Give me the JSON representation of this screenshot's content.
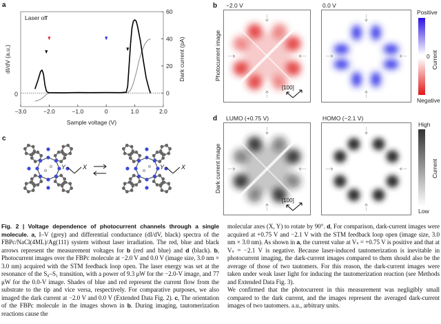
{
  "panel_a": {
    "label": "a",
    "annotation": "Laser off",
    "left_axis_label": "dI/dV (a.u.)",
    "left_tick": "0",
    "right_axis_label": "Dark current (pA)",
    "colors": {
      "didv": "#000000",
      "iv": "#888888",
      "red_arrow": "#e0202a",
      "blue_arrow": "#2020e0",
      "black_arrow": "#000000"
    }
  },
  "chart_data": {
    "type": "line",
    "xlabel": "Sample voltage (V)",
    "ylabel_left": "dI/dV (a.u.)",
    "ylabel_right": "Dark current (pA)",
    "xlim": [
      -3.0,
      2.0
    ],
    "ylim_right": [
      -10,
      60
    ],
    "x_ticks": [
      "-3.0",
      "-2.0",
      "-1.0",
      "0",
      "1.0",
      "2.0"
    ],
    "y_right_ticks": [
      "0",
      "20",
      "40",
      "60"
    ],
    "series": [
      {
        "name": "dI/dV",
        "color": "#000000",
        "x": [
          -2.5,
          -2.4,
          -2.3,
          -2.25,
          -2.2,
          -2.15,
          -2.1,
          -2.05,
          -2.0,
          -1.5,
          -1.0,
          -0.5,
          0.0,
          0.5,
          0.7,
          0.75,
          0.8,
          0.85,
          0.9,
          0.95,
          1.0,
          1.05,
          1.1,
          1.2,
          1.3,
          1.4,
          1.5,
          1.55
        ],
        "y": [
          3,
          9,
          16,
          17,
          14,
          6,
          1.5,
          0.5,
          0.3,
          0.2,
          0.4,
          0.3,
          0.4,
          0.3,
          0.6,
          5,
          20,
          36,
          48,
          53,
          54,
          53,
          49,
          38,
          24,
          11,
          3,
          0
        ]
      },
      {
        "name": "I-V",
        "color": "#888888",
        "x": [
          -2.5,
          -2.4,
          -2.3,
          -2.2,
          -2.1,
          -2.0,
          -1.0,
          0.0,
          0.6,
          0.75,
          0.85,
          0.95,
          1.05,
          1.15,
          1.25,
          1.35,
          1.45,
          1.55
        ],
        "y": [
          -6,
          -5.5,
          -4.5,
          -3,
          -1,
          0,
          0,
          0,
          0,
          0.3,
          2,
          7,
          15,
          24,
          31,
          36,
          39,
          40
        ]
      }
    ],
    "markers": [
      {
        "x": -2.1,
        "color": "black"
      },
      {
        "x": -2.0,
        "color": "red"
      },
      {
        "x": 0.0,
        "color": "blue"
      },
      {
        "x": 0.75,
        "color": "black"
      }
    ]
  },
  "panel_b": {
    "label": "b",
    "row_label": "Photocurrent image",
    "images": [
      {
        "title": "−2.0 V",
        "color": "#e02a2a"
      },
      {
        "title": "0.0 V",
        "color": "#2a2ae6"
      }
    ],
    "direction": "[100]",
    "colorbar": {
      "top": "Positive",
      "mid": "0",
      "bottom": "Negative",
      "label": "Current",
      "top_color": "#2a10e0",
      "bottom_color": "#e01818"
    }
  },
  "panel_c": {
    "label": "c",
    "axis_x": "X",
    "axis_y": "Y"
  },
  "panel_d": {
    "label": "d",
    "row_label": "Dark current image",
    "images": [
      {
        "title": "LUMO (+0.75 V)"
      },
      {
        "title": "HOMO (−2.1 V)"
      }
    ],
    "direction": "[100]",
    "colorbar": {
      "top": "High",
      "bottom": "Low",
      "label": "Current"
    }
  },
  "caption": {
    "s1": "Fig. 2 | Voltage dependence of photocurrent channels through a single molecule. a",
    "s2": ", I–V (grey) and differential conductance (dI/dV, black) spectra of the FBPc/NaCl(4ML)/Ag(111) system without laser irradiation. The red, blue and black arrows represent the measurement voltages for ",
    "s3": "b",
    "s4": " (red and blue) and ",
    "s5": "d",
    "s6": " (black). ",
    "s7": "b",
    "s8": ", Photocurrent images over the FBPc molecule at −2.0 V and 0.0 V (image size, 3.0 nm × 3.0 nm) acquired with the STM feedback loop open. The laser energy was set at the resonance of the S₀–S₁ transition, with a power of 9.3 μW for the −2.0-V image, and 77 μW for the 0.0-V image. Shades of blue and red represent the current flow from the substrate to the tip and vice versa, respectively. For comparative purposes, we also imaged the dark current at −2.0 V and 0.0 V (Extended Data Fig. 2). ",
    "s9": "c",
    "s10": ", The orientation of the FBPc molecule in the images shown in ",
    "s11": "b",
    "s12": ". During imaging, tautomerization reactions cause the",
    "s13": "molecular axes (X, Y) to rotate by 90°. ",
    "s14": "d",
    "s15": ", For comparison, dark-current images were acquired at +0.75 V and −2.1 V with the STM feedback loop open (image size, 3.0 nm × 3.0 nm). As shown in ",
    "s16": "a",
    "s17": ", the current value at Vₛ = +0.75 V is positive and that at Vₛ = −2.1 V is negative. Because laser-induced tautomerization is inevitable in photocurrent imaging, the dark-current images compared to them should also be the average of those of two tautomers. For this reason, the dark-current images were taken under weak laser light for inducing the tautomerization reaction (see Methods and Extended Data Fig. 3).",
    "s18": "We confirmed that the photocurrent in this measurement was negligibly small compared to the dark current, and the images represent the averaged dark-current images of two tautomers. a.u., arbitrary units."
  }
}
